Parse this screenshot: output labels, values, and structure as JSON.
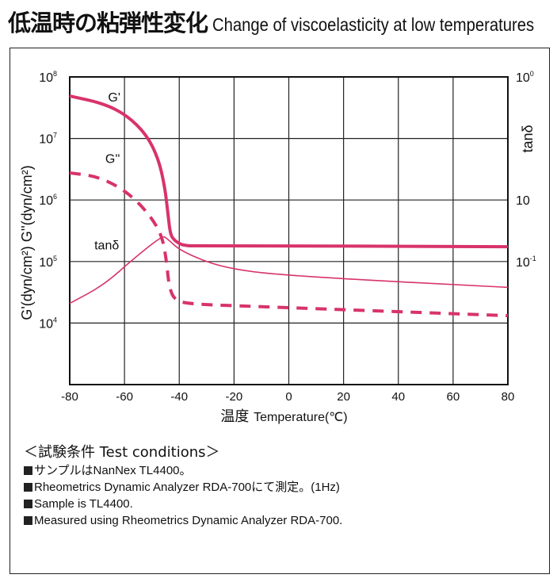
{
  "header": {
    "title_jp": "低温時の粘弾性変化",
    "title_en": "Change of viscoelasticity at low temperatures"
  },
  "chart_data": {
    "type": "line",
    "xlabel_jp": "温度",
    "xlabel_en": "Temperature(℃)",
    "ylabel": "G'(dyn/cm²) G''(dyn/cm²)",
    "y2label": "tanδ",
    "xlim": [
      -80,
      80
    ],
    "xticks": [
      "-80",
      "-60",
      "-40",
      "-20",
      "0",
      "20",
      "40",
      "60",
      "80"
    ],
    "ylim_log10": [
      3,
      8
    ],
    "yticks": [
      {
        "base": "10",
        "exp": "8",
        "log": 8
      },
      {
        "base": "10",
        "exp": "7",
        "log": 7
      },
      {
        "base": "10",
        "exp": "6",
        "log": 6
      },
      {
        "base": "10",
        "exp": "5",
        "log": 5
      },
      {
        "base": "10",
        "exp": "4",
        "log": 4
      }
    ],
    "y2ticks": [
      {
        "base": "10",
        "exp": "0",
        "pos_log": 8
      },
      {
        "base": "10",
        "exp": "",
        "pos_log": 6
      },
      {
        "base": "10",
        "exp": "-1",
        "pos_log": 5
      }
    ],
    "grid": true,
    "series": [
      {
        "name": "G'",
        "style": "thick-solid",
        "color": "#d8336b",
        "points_log10": [
          [
            -80,
            7.69
          ],
          [
            -67.8,
            7.57
          ],
          [
            -59.2,
            7.38
          ],
          [
            -51.9,
            7.06
          ],
          [
            -47.6,
            6.67
          ],
          [
            -45.3,
            6.22
          ],
          [
            -44.1,
            5.77
          ],
          [
            -43.3,
            5.45
          ],
          [
            -41.8,
            5.34
          ],
          [
            -38.3,
            5.25
          ],
          [
            -30.2,
            5.26
          ],
          [
            80,
            5.24
          ]
        ],
        "label_at": [
          -66,
          7.6
        ]
      },
      {
        "name": "G''",
        "style": "dashed",
        "color": "#d8336b",
        "points_log10": [
          [
            -80,
            6.44
          ],
          [
            -70.7,
            6.39
          ],
          [
            -62.1,
            6.22
          ],
          [
            -54.8,
            5.96
          ],
          [
            -49.0,
            5.64
          ],
          [
            -46.1,
            5.38
          ],
          [
            -44.6,
            4.99
          ],
          [
            -43.8,
            4.61
          ],
          [
            -41.8,
            4.37
          ],
          [
            -36.0,
            4.31
          ],
          [
            -18.7,
            4.28
          ],
          [
            80,
            4.12
          ]
        ],
        "label_at": [
          -67,
          6.6
        ]
      },
      {
        "name": "tanδ",
        "style": "thin-solid",
        "color": "#d8336b",
        "points_log10": [
          [
            -80,
            4.32
          ],
          [
            -67.8,
            4.61
          ],
          [
            -56.3,
            5.06
          ],
          [
            -46.1,
            5.42
          ],
          [
            -44.6,
            5.38
          ],
          [
            -38.9,
            5.15
          ],
          [
            -21.6,
            4.86
          ],
          [
            10.3,
            4.74
          ],
          [
            80,
            4.58
          ]
        ],
        "label_at": [
          -71,
          5.2
        ]
      }
    ]
  },
  "conditions": {
    "heading": "＜試験条件 Test conditions＞",
    "items": [
      "サンプルはNanNex TL4400。",
      "Rheometrics Dynamic Analyzer RDA-700にて測定。(1Hz)",
      "Sample is TL4400.",
      "Measured using Rheometrics Dynamic Analyzer RDA-700."
    ]
  }
}
